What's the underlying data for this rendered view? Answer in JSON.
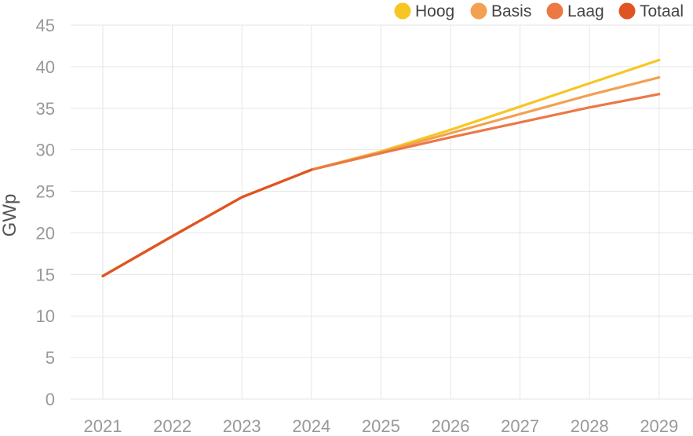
{
  "chart_data": {
    "type": "line",
    "x": [
      "2021",
      "2022",
      "2023",
      "2024",
      "2025",
      "2026",
      "2027",
      "2028",
      "2029"
    ],
    "ylabel": "GWp",
    "ylim": [
      0,
      45
    ],
    "yticks": [
      0,
      5,
      10,
      15,
      20,
      25,
      30,
      35,
      40,
      45
    ],
    "grid": true,
    "legend_position": "top-right",
    "series": [
      {
        "name": "Hoog",
        "color": "#f7c623",
        "values": [
          14.8,
          19.6,
          24.3,
          27.6,
          29.8,
          32.4,
          35.2,
          38.0,
          40.8
        ]
      },
      {
        "name": "Basis",
        "color": "#f2a152",
        "values": [
          14.8,
          19.6,
          24.3,
          27.6,
          29.7,
          32.0,
          34.3,
          36.6,
          38.7
        ]
      },
      {
        "name": "Laag",
        "color": "#ec7845",
        "values": [
          14.8,
          19.6,
          24.3,
          27.6,
          29.6,
          31.5,
          33.3,
          35.1,
          36.7
        ]
      },
      {
        "name": "Totaal",
        "color": "#e05424",
        "values": [
          14.8,
          19.6,
          24.3,
          27.6,
          null,
          null,
          null,
          null,
          null
        ]
      }
    ]
  }
}
